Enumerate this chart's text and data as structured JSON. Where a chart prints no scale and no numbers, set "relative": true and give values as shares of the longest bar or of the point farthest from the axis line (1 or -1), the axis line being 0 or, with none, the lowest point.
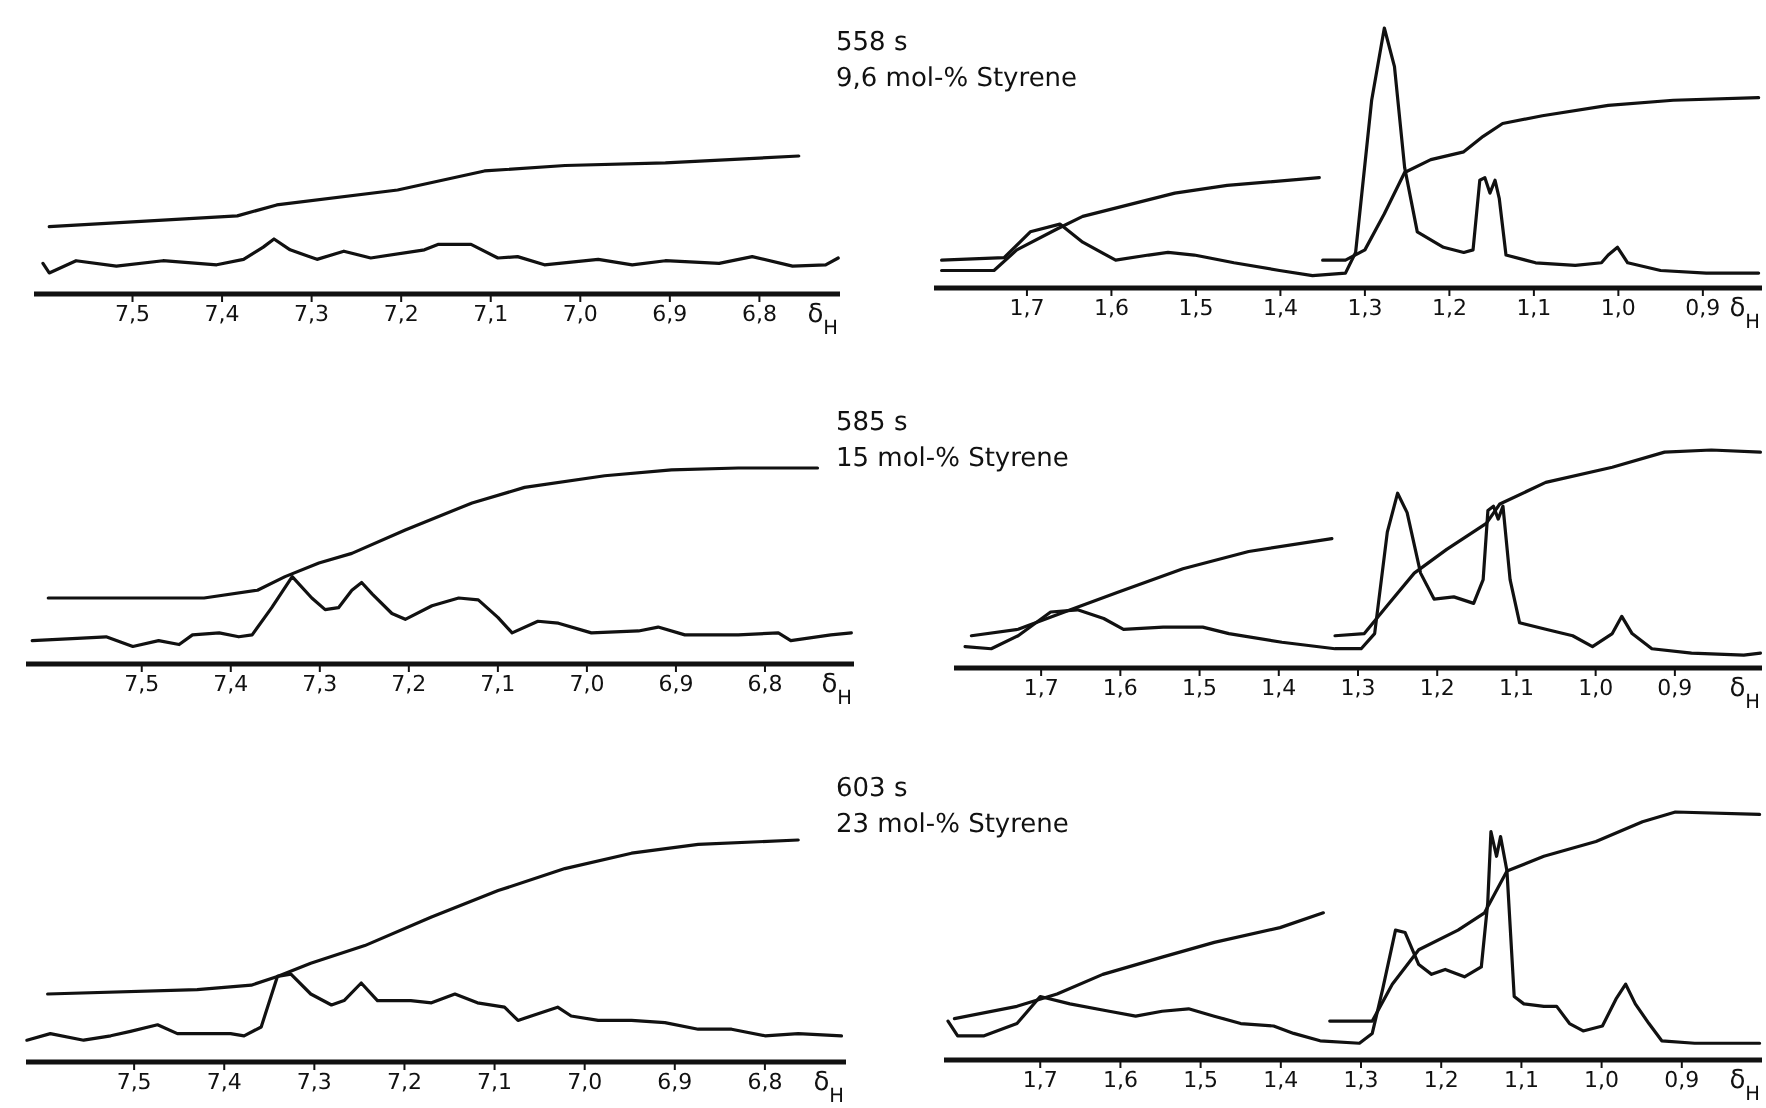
{
  "chart_data": [
    {
      "type": "line",
      "relative": true,
      "xlabel": "δ$_{H}$",
      "xlim": [
        7.61,
        6.71
      ],
      "xticks": [
        {
          "value": 7.5,
          "label": "7,5"
        },
        {
          "value": 7.4,
          "label": "7,4"
        },
        {
          "value": 7.3,
          "label": "7,3"
        },
        {
          "value": 7.2,
          "label": "7,2"
        },
        {
          "value": 7.1,
          "label": "7,1"
        },
        {
          "value": 7.0,
          "label": "7,0"
        },
        {
          "value": 6.9,
          "label": "6,9"
        },
        {
          "value": 6.8,
          "label": "6,8"
        }
      ],
      "series": [
        {
          "color": "#111111",
          "x": [
            7.6,
            7.593,
            7.563,
            7.518,
            7.466,
            7.406,
            7.376,
            7.354,
            7.342,
            7.324,
            7.294,
            7.264,
            7.234,
            7.174,
            7.159,
            7.122,
            7.092,
            7.07,
            7.04,
            6.98,
            6.942,
            6.905,
            6.845,
            6.808,
            6.763,
            6.726,
            6.712
          ],
          "values": [
            0.21,
            0.14,
            0.23,
            0.19,
            0.23,
            0.2,
            0.24,
            0.33,
            0.39,
            0.31,
            0.24,
            0.3,
            0.25,
            0.31,
            0.35,
            0.35,
            0.25,
            0.26,
            0.2,
            0.24,
            0.2,
            0.23,
            0.21,
            0.26,
            0.19,
            0.2,
            0.25
          ]
        },
        {
          "color": "#111111",
          "x": [
            7.593,
            7.383,
            7.339,
            7.204,
            7.107,
            7.017,
            6.905,
            6.756
          ],
          "values": [
            0.48,
            0.56,
            0.64,
            0.75,
            0.89,
            0.93,
            0.95,
            1.0
          ]
        }
      ]
    },
    {
      "type": "line",
      "relative": true,
      "xlabel": "δ$_{H}$",
      "xlim": [
        1.81,
        0.83
      ],
      "xticks": [
        {
          "value": 1.7,
          "label": "1,7"
        },
        {
          "value": 1.6,
          "label": "1,6"
        },
        {
          "value": 1.5,
          "label": "1,5"
        },
        {
          "value": 1.4,
          "label": "1,4"
        },
        {
          "value": 1.3,
          "label": "1,3"
        },
        {
          "value": 1.2,
          "label": "1,2"
        },
        {
          "value": 1.1,
          "label": "1,1"
        },
        {
          "value": 1.0,
          "label": "1,0"
        },
        {
          "value": 0.9,
          "label": "0,9"
        }
      ],
      "annotations": [
        "558 s",
        "9,6 mol-% Styrene"
      ],
      "series": [
        {
          "color": "#111111",
          "x": [
            1.801,
            1.727,
            1.696,
            1.661,
            1.634,
            1.595,
            1.556,
            1.533,
            1.502,
            1.455,
            1.401,
            1.362,
            1.323,
            1.311,
            1.292,
            1.277,
            1.265,
            1.253,
            1.238,
            1.207,
            1.183,
            1.172,
            1.164,
            1.158,
            1.152,
            1.146,
            1.141,
            1.133,
            1.098,
            1.051,
            1.02,
            1.012,
            1.001,
            0.989,
            0.95,
            0.896,
            0.834
          ],
          "values": [
            0.1,
            0.11,
            0.21,
            0.24,
            0.17,
            0.1,
            0.12,
            0.13,
            0.12,
            0.09,
            0.06,
            0.04,
            0.05,
            0.13,
            0.72,
            1.0,
            0.85,
            0.46,
            0.21,
            0.15,
            0.13,
            0.14,
            0.41,
            0.42,
            0.36,
            0.41,
            0.34,
            0.12,
            0.09,
            0.08,
            0.09,
            0.12,
            0.15,
            0.09,
            0.06,
            0.05,
            0.05
          ]
        },
        {
          "color": "#111111",
          "x": [
            1.801,
            1.739,
            1.712,
            1.665,
            1.634,
            1.525,
            1.463,
            1.354
          ],
          "values": [
            0.06,
            0.06,
            0.14,
            0.22,
            0.27,
            0.36,
            0.39,
            0.42
          ]
        },
        {
          "color": "#111111",
          "x": [
            1.35,
            1.323,
            1.3,
            1.277,
            1.253,
            1.222,
            1.183,
            1.16,
            1.137,
            1.09,
            1.012,
            0.935,
            0.834
          ],
          "values": [
            0.1,
            0.1,
            0.14,
            0.28,
            0.44,
            0.49,
            0.52,
            0.58,
            0.63,
            0.66,
            0.7,
            0.72,
            0.73
          ]
        }
      ]
    },
    {
      "type": "line",
      "relative": true,
      "xlabel": "δ$_{H}$",
      "xlim": [
        7.63,
        6.7
      ],
      "xticks": [
        {
          "value": 7.5,
          "label": "7,5"
        },
        {
          "value": 7.4,
          "label": "7,4"
        },
        {
          "value": 7.3,
          "label": "7,3"
        },
        {
          "value": 7.2,
          "label": "7,2"
        },
        {
          "value": 7.1,
          "label": "7,1"
        },
        {
          "value": 7.0,
          "label": "7,0"
        },
        {
          "value": 6.9,
          "label": "6,9"
        },
        {
          "value": 6.8,
          "label": "6,8"
        }
      ],
      "series": [
        {
          "color": "#111111",
          "x": [
            7.623,
            7.578,
            7.54,
            7.51,
            7.481,
            7.458,
            7.443,
            7.413,
            7.391,
            7.376,
            7.354,
            7.331,
            7.309,
            7.294,
            7.279,
            7.264,
            7.253,
            7.241,
            7.219,
            7.204,
            7.174,
            7.144,
            7.122,
            7.1,
            7.084,
            7.055,
            7.032,
            6.995,
            6.942,
            6.92,
            6.89,
            6.83,
            6.785,
            6.771,
            6.726,
            6.703
          ],
          "values": [
            0.11,
            0.12,
            0.13,
            0.08,
            0.11,
            0.09,
            0.14,
            0.15,
            0.13,
            0.14,
            0.28,
            0.44,
            0.33,
            0.27,
            0.28,
            0.37,
            0.41,
            0.35,
            0.25,
            0.22,
            0.29,
            0.33,
            0.32,
            0.23,
            0.15,
            0.21,
            0.2,
            0.15,
            0.16,
            0.18,
            0.14,
            0.14,
            0.15,
            0.11,
            0.14,
            0.15
          ]
        },
        {
          "color": "#111111",
          "x": [
            7.605,
            7.43,
            7.37,
            7.339,
            7.301,
            7.264,
            7.204,
            7.129,
            7.07,
            6.98,
            6.905,
            6.83,
            6.741
          ],
          "values": [
            0.33,
            0.33,
            0.37,
            0.44,
            0.51,
            0.56,
            0.68,
            0.82,
            0.9,
            0.96,
            0.99,
            1.0,
            1.0
          ]
        }
      ]
    },
    {
      "type": "line",
      "relative": true,
      "xlabel": "δ$_{H}$",
      "xlim": [
        1.81,
        0.79
      ],
      "xticks": [
        {
          "value": 1.7,
          "label": "1,7"
        },
        {
          "value": 1.6,
          "label": "1,6"
        },
        {
          "value": 1.5,
          "label": "1,5"
        },
        {
          "value": 1.4,
          "label": "1,4"
        },
        {
          "value": 1.3,
          "label": "1,3"
        },
        {
          "value": 1.2,
          "label": "1,2"
        },
        {
          "value": 1.1,
          "label": "1,1"
        },
        {
          "value": 1.0,
          "label": "1,0"
        },
        {
          "value": 0.9,
          "label": "0,9"
        }
      ],
      "annotations": [
        "585 s",
        "15 mol-% Styrene"
      ],
      "series": [
        {
          "color": "#111111",
          "x": [
            1.796,
            1.763,
            1.729,
            1.688,
            1.654,
            1.621,
            1.596,
            1.546,
            1.496,
            1.463,
            1.396,
            1.329,
            1.296,
            1.279,
            1.263,
            1.25,
            1.238,
            1.221,
            1.204,
            1.179,
            1.154,
            1.142,
            1.136,
            1.129,
            1.123,
            1.117,
            1.108,
            1.096,
            1.063,
            1.029,
            1.004,
            0.979,
            0.967,
            0.954,
            0.929,
            0.879,
            0.813,
            0.792
          ],
          "values": [
            0.09,
            0.08,
            0.14,
            0.25,
            0.26,
            0.22,
            0.17,
            0.18,
            0.18,
            0.15,
            0.11,
            0.08,
            0.08,
            0.15,
            0.62,
            0.8,
            0.71,
            0.43,
            0.31,
            0.32,
            0.29,
            0.4,
            0.72,
            0.74,
            0.68,
            0.74,
            0.4,
            0.2,
            0.17,
            0.14,
            0.09,
            0.15,
            0.23,
            0.15,
            0.08,
            0.06,
            0.05,
            0.06
          ]
        },
        {
          "color": "#111111",
          "x": [
            1.788,
            1.729,
            1.663,
            1.604,
            1.521,
            1.438,
            1.333
          ],
          "values": [
            0.14,
            0.17,
            0.26,
            0.34,
            0.45,
            0.53,
            0.59
          ]
        },
        {
          "color": "#111111",
          "x": [
            1.329,
            1.292,
            1.263,
            1.229,
            1.188,
            1.138,
            1.121,
            1.063,
            0.979,
            0.913,
            0.854,
            0.792
          ],
          "values": [
            0.14,
            0.15,
            0.28,
            0.43,
            0.54,
            0.66,
            0.75,
            0.85,
            0.92,
            0.99,
            1.0,
            0.99
          ]
        }
      ]
    },
    {
      "type": "line",
      "relative": true,
      "xlabel": "δ$_{H}$",
      "xlim": [
        7.62,
        6.71
      ],
      "xticks": [
        {
          "value": 7.5,
          "label": "7,5"
        },
        {
          "value": 7.4,
          "label": "7,4"
        },
        {
          "value": 7.3,
          "label": "7,3"
        },
        {
          "value": 7.2,
          "label": "7,2"
        },
        {
          "value": 7.1,
          "label": "7,1"
        },
        {
          "value": 7.0,
          "label": "7,0"
        },
        {
          "value": 6.9,
          "label": "6,9"
        },
        {
          "value": 6.8,
          "label": "6,8"
        }
      ],
      "series": [
        {
          "color": "#111111",
          "x": [
            7.619,
            7.593,
            7.556,
            7.526,
            7.504,
            7.474,
            7.452,
            7.393,
            7.378,
            7.359,
            7.341,
            7.326,
            7.304,
            7.281,
            7.267,
            7.248,
            7.23,
            7.193,
            7.17,
            7.144,
            7.119,
            7.089,
            7.074,
            7.03,
            7.015,
            6.985,
            6.948,
            6.911,
            6.874,
            6.837,
            6.8,
            6.763,
            6.715
          ],
          "values": [
            0.09,
            0.12,
            0.09,
            0.11,
            0.13,
            0.16,
            0.12,
            0.12,
            0.11,
            0.15,
            0.38,
            0.39,
            0.3,
            0.25,
            0.27,
            0.35,
            0.27,
            0.27,
            0.26,
            0.3,
            0.26,
            0.24,
            0.18,
            0.24,
            0.2,
            0.18,
            0.18,
            0.17,
            0.14,
            0.14,
            0.11,
            0.12,
            0.11
          ]
        },
        {
          "color": "#111111",
          "x": [
            7.596,
            7.43,
            7.37,
            7.341,
            7.304,
            7.244,
            7.17,
            7.096,
            7.022,
            6.948,
            6.874,
            6.763
          ],
          "values": [
            0.3,
            0.32,
            0.34,
            0.38,
            0.44,
            0.52,
            0.65,
            0.77,
            0.87,
            0.94,
            0.98,
            1.0
          ]
        }
      ]
    },
    {
      "type": "line",
      "relative": true,
      "xlabel": "δ$_{H}$",
      "xlim": [
        1.82,
        0.8
      ],
      "xticks": [
        {
          "value": 1.7,
          "label": "1,7"
        },
        {
          "value": 1.6,
          "label": "1,6"
        },
        {
          "value": 1.5,
          "label": "1,5"
        },
        {
          "value": 1.4,
          "label": "1,4"
        },
        {
          "value": 1.3,
          "label": "1,3"
        },
        {
          "value": 1.2,
          "label": "1,2"
        },
        {
          "value": 1.1,
          "label": "1,1"
        },
        {
          "value": 1.0,
          "label": "1,0"
        },
        {
          "value": 0.9,
          "label": "0,9"
        }
      ],
      "annotations": [
        "603 s",
        "23 mol-% Styrene"
      ],
      "series": [
        {
          "color": "#111111",
          "x": [
            1.815,
            1.803,
            1.77,
            1.729,
            1.7,
            1.663,
            1.614,
            1.581,
            1.548,
            1.515,
            1.483,
            1.45,
            1.409,
            1.384,
            1.351,
            1.302,
            1.286,
            1.273,
            1.257,
            1.245,
            1.228,
            1.212,
            1.195,
            1.171,
            1.15,
            1.142,
            1.138,
            1.131,
            1.126,
            1.118,
            1.109,
            1.097,
            1.072,
            1.056,
            1.04,
            1.023,
            0.999,
            0.982,
            0.97,
            0.958,
            0.941,
            0.925,
            0.884,
            0.803
          ],
          "values": [
            0.15,
            0.09,
            0.09,
            0.14,
            0.25,
            0.22,
            0.19,
            0.17,
            0.19,
            0.2,
            0.17,
            0.14,
            0.13,
            0.1,
            0.07,
            0.06,
            0.1,
            0.28,
            0.52,
            0.51,
            0.38,
            0.34,
            0.36,
            0.33,
            0.37,
            0.63,
            0.92,
            0.82,
            0.9,
            0.76,
            0.25,
            0.22,
            0.21,
            0.21,
            0.14,
            0.11,
            0.13,
            0.24,
            0.3,
            0.22,
            0.14,
            0.07,
            0.06,
            0.06
          ]
        },
        {
          "color": "#111111",
          "x": [
            1.807,
            1.729,
            1.679,
            1.622,
            1.548,
            1.483,
            1.401,
            1.347
          ],
          "values": [
            0.16,
            0.21,
            0.26,
            0.34,
            0.41,
            0.47,
            0.53,
            0.59
          ]
        },
        {
          "color": "#111111",
          "x": [
            1.339,
            1.286,
            1.261,
            1.228,
            1.179,
            1.146,
            1.118,
            1.072,
            1.007,
            0.949,
            0.908,
            0.803
          ],
          "values": [
            0.15,
            0.15,
            0.3,
            0.44,
            0.52,
            0.59,
            0.76,
            0.82,
            0.88,
            0.96,
            1.0,
            0.99
          ]
        }
      ]
    }
  ]
}
